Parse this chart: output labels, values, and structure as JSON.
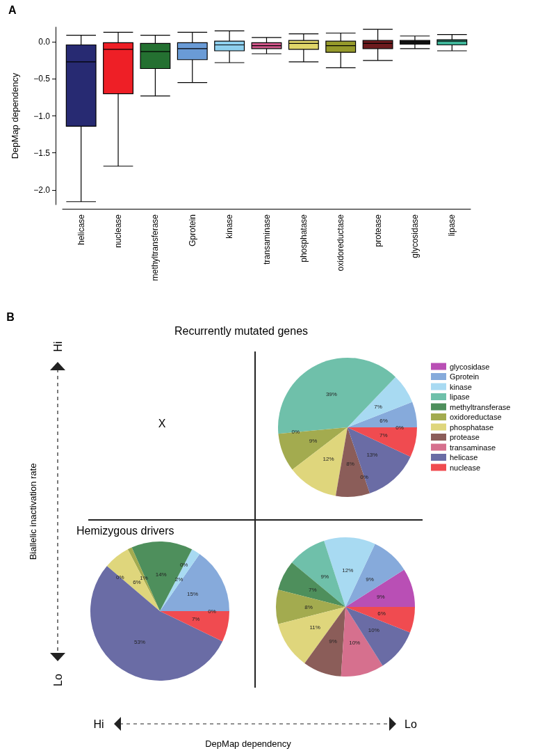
{
  "chart_data": [
    {
      "type": "box",
      "ylabel": "DepMap dependency",
      "annotations": [
        "A"
      ],
      "categories": [
        "helicase",
        "nuclease",
        "methyltransferase",
        "Gprotein",
        "kinase",
        "transaminase",
        "phosphatase",
        "oxidoreductase",
        "protease",
        "glycosidase",
        "lipase"
      ],
      "colors": [
        "#272a72",
        "#ee1f26",
        "#247031",
        "#6a9bd6",
        "#8ed0ee",
        "#d0578a",
        "#e0d66a",
        "#969a2b",
        "#6d1a1d",
        "#1a1a1a",
        "#40b69a"
      ],
      "boxes": [
        {
          "low": -2.16,
          "q1": -1.14,
          "median": -0.27,
          "q3": -0.04,
          "high": 0.09
        },
        {
          "low": -1.68,
          "q1": -0.7,
          "median": -0.1,
          "q3": -0.01,
          "high": 0.13
        },
        {
          "low": -0.73,
          "q1": -0.36,
          "median": -0.13,
          "q3": -0.02,
          "high": 0.09
        },
        {
          "low": -0.55,
          "q1": -0.24,
          "median": -0.09,
          "q3": -0.01,
          "high": 0.13
        },
        {
          "low": -0.28,
          "q1": -0.12,
          "median": -0.04,
          "q3": 0.01,
          "high": 0.15
        },
        {
          "low": -0.16,
          "q1": -0.09,
          "median": -0.05,
          "q3": -0.01,
          "high": 0.06
        },
        {
          "low": -0.27,
          "q1": -0.1,
          "median": -0.02,
          "q3": 0.02,
          "high": 0.11
        },
        {
          "low": -0.35,
          "q1": -0.14,
          "median": -0.05,
          "q3": 0.01,
          "high": 0.12
        },
        {
          "low": -0.25,
          "q1": -0.09,
          "median": -0.02,
          "q3": 0.02,
          "high": 0.17
        },
        {
          "low": -0.09,
          "q1": -0.03,
          "median": 0,
          "q3": 0.02,
          "high": 0.08
        },
        {
          "low": -0.12,
          "q1": -0.04,
          "median": 0.01,
          "q3": 0.03,
          "high": 0.1
        }
      ],
      "ylim": [
        -2.2,
        0.2
      ],
      "yticks": [
        {
          "value": -2,
          "label": "−2.0"
        },
        {
          "value": -1.5,
          "label": "−1.5"
        },
        {
          "value": -1,
          "label": "−1.0"
        },
        {
          "value": -0.5,
          "label": "−0.5"
        },
        {
          "value": 0,
          "label": "0.0"
        }
      ]
    },
    {
      "type": "pie",
      "title": "Recurrently mutated genes",
      "xlabel": "DepMap dependency",
      "ylabel": "Biallelic inactivation rate",
      "annotations": [
        "B",
        "X",
        "Hi",
        "Lo",
        "Hi",
        "Lo"
      ],
      "categories": [
        "glycosidase",
        "Gprotein",
        "kinase",
        "lipase",
        "methyltransferase",
        "oxidoreductase",
        "phosphatase",
        "protease",
        "transaminase",
        "helicase",
        "nuclease"
      ],
      "colors": [
        "#b94fb5",
        "#86aadb",
        "#a8daf2",
        "#6fc0aa",
        "#4e8f5c",
        "#a3ab4f",
        "#dfd67c",
        "#8b5d59",
        "#d6708e",
        "#6a6ca5",
        "#f04b50"
      ],
      "legend": "right",
      "series": [
        {
          "values": [
            0,
            6,
            7,
            39,
            0,
            9,
            12,
            8,
            0,
            13,
            7
          ],
          "value_labels": [
            "0%",
            "6%",
            "7%",
            "39%",
            "0%",
            "9%",
            "12%",
            "8%",
            "0%",
            "13%",
            "7%"
          ]
        },
        {
          "name": "Hemizygous drivers",
          "values": [
            0,
            15,
            2,
            0,
            14,
            1,
            6,
            0,
            0,
            53,
            7
          ],
          "value_labels": [
            "0%",
            "15%",
            "2%",
            "0%",
            "14%",
            "1%",
            "6%",
            "0%",
            null,
            "53%",
            "7%"
          ]
        },
        {
          "values": [
            9,
            9,
            12,
            9,
            7,
            8,
            11,
            9,
            10,
            10,
            6
          ],
          "value_labels": [
            "9%",
            "9%",
            "12%",
            "9%",
            "7%",
            "8%",
            "11%",
            "9%",
            "10%",
            "10%",
            "6%"
          ]
        }
      ]
    }
  ]
}
